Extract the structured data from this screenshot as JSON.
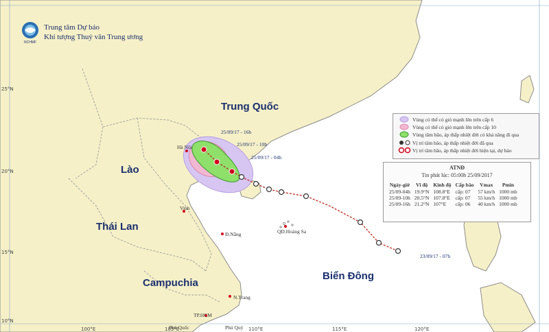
{
  "agency": {
    "line1": "Trung tâm Dự báo",
    "line2": "Khí tượng Thuỷ văn Trung ương",
    "logo_text": "NCHMF"
  },
  "map_labels": {
    "china": "Trung Quốc",
    "laos": "Lào",
    "thailand": "Thái Lan",
    "cambodia": "Campuchia",
    "east_sea": "Biển Đông",
    "hanoi": "Hà Nội",
    "vinh": "Vinh",
    "da_nang": "Đ.Nẵng",
    "paracel": "QĐ.Hoàng Sa",
    "nha_trang": "N.Trang",
    "hcm": "TP.HCM",
    "phu_quoc": "Phú Quốc",
    "phu_quy": "Phú Quý"
  },
  "lat_labels": [
    "25°N",
    "20°N",
    "15°N",
    "10°N"
  ],
  "lon_labels": [
    "100°E",
    "105°E",
    "110°E",
    "115°E",
    "120°E"
  ],
  "track_annotations": {
    "t1": "25/09/17 - 16h",
    "t2": "25/09/17 - 10h",
    "t3": "25/09/17 - 04h",
    "t4": "23/09/17 - 07h"
  },
  "legend": [
    "Vùng có thể có gió mạnh lên trên cấp 6",
    "Vùng có thể có gió mạnh lên trên cấp 10",
    "Vùng tâm bão, áp thấp nhiệt đới có khả năng đi qua",
    "Vị trí tâm bão, áp thấp nhiệt đới đã qua",
    "Vị trí tâm bão, áp thấp nhiệt đới hiện tại, dự báo"
  ],
  "info_box": {
    "title": "ATNĐ",
    "issued": "Tin phát lúc: 05:00h 25/09/2017",
    "headers": [
      "Ngày-giờ",
      "Vĩ độ",
      "Kinh độ",
      "Cấp bão",
      "Vmax",
      "Pmin"
    ],
    "rows": [
      [
        "25/09-04h",
        "19.9°N",
        "108.8°E",
        "cấp: 07",
        "57 km/h",
        "1000 mb"
      ],
      [
        "25/09-10h",
        "20.5°N",
        "107.8°E",
        "cấp: 07",
        "55 km/h",
        "1000 mb"
      ],
      [
        "25/09-16h",
        "21.2°N",
        "107°E",
        "cấp: 06",
        "40 km/h",
        "1000 mb"
      ]
    ]
  },
  "colors": {
    "sea": "#ffffff",
    "land": "#f6f0c8",
    "border": "#8a8a8a",
    "zone6": "#d7c6f2",
    "zone10": "#f2b8d2",
    "cone": "#8ee06a",
    "track": "#c0352b"
  }
}
